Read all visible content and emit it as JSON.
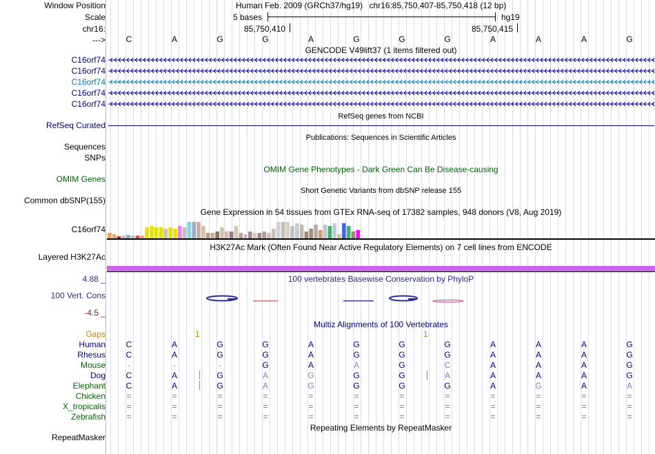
{
  "header": {
    "window_position_label": "Window Position",
    "assembly_text": "Human Feb. 2009 (GRCh37/hg19)",
    "position_text": "chr16:85,750,407-85,750,418 (12 bp)",
    "scale_label": "Scale",
    "scale_text": "5 bases",
    "scale_db": "hg19",
    "chrom_label": "chr16:",
    "coord_left": "85,750,410",
    "coord_right": "85,750,415",
    "strand_label": "--->"
  },
  "ref_bases": [
    "C",
    "A",
    "G",
    "G",
    "A",
    "G",
    "G",
    "G",
    "A",
    "A",
    "A",
    "G"
  ],
  "gencode": {
    "title": "GENCODE V49lift37 (1 items filtered out)",
    "genes": [
      {
        "label": "C16orf74",
        "color": "#000080"
      },
      {
        "label": "C16orf74",
        "color": "#000080"
      },
      {
        "label": "C16orf74",
        "color": "#0a7aa8"
      },
      {
        "label": "C16orf74",
        "color": "#000080"
      },
      {
        "label": "C16orf74",
        "color": "#000080"
      }
    ]
  },
  "refseq": {
    "title": "RefSeq genes from NCBI",
    "label": "RefSeq Curated"
  },
  "publications": {
    "title": "Publications: Sequences in Scientific Articles",
    "label": "Sequences"
  },
  "snps_label": "SNPs",
  "omim": {
    "title": "OMIM Gene Phenotypes - Dark Green Can Be Disease-causing",
    "label": "OMIM Genes",
    "color": "#006400"
  },
  "dbsnp": {
    "title": "Short Genetic Variants from dbSNP release 155",
    "label": "Common dbSNP(155)"
  },
  "gtex": {
    "title": "Gene Expression in 54 tissues from GTEx RNA-seq of 17382 samples, 948 donors (V8, Aug 2019)",
    "label": "C16orf74"
  },
  "h3k27ac": {
    "title": "H3K27Ac Mark (Often Found Near Active Regulatory Elements) on 7 cell lines from ENCODE",
    "label": "Layered H3K27Ac",
    "color": "#cc66ee"
  },
  "phylop": {
    "title": "100 vertebrates Basewise Conservation by PhyloP",
    "label": "100 Vert. Cons",
    "max_label": "4.88 _",
    "min_label": "-4.5 _",
    "color": "#2a2a8a"
  },
  "multiz": {
    "title": "Multiz Alignments of 100 Vertebrates",
    "gaps_label": "Gaps",
    "gap_marker": "1",
    "species": [
      {
        "name": "Human",
        "bases": [
          "C",
          "A",
          "G",
          "G",
          "A",
          "G",
          "G",
          "G",
          "A",
          "A",
          "A",
          "G"
        ]
      },
      {
        "name": "Rhesus",
        "bases": [
          "C",
          "A",
          "G",
          "G",
          "A",
          "G",
          "G",
          "G",
          "A",
          "A",
          "A",
          "G"
        ]
      },
      {
        "name": "Mouse",
        "bases": [
          "-",
          "-",
          "-",
          "G",
          "A",
          "A",
          "G",
          "C",
          "A",
          "A",
          "A",
          "G"
        ]
      },
      {
        "name": "Dog",
        "bases": [
          "C",
          "A",
          "G",
          "A",
          "G",
          "G",
          "G",
          "A",
          "A",
          "A",
          "A",
          "G"
        ]
      },
      {
        "name": "Elephant",
        "bases": [
          "C",
          "A",
          "G",
          "A",
          "G",
          "G",
          "G",
          "G",
          "A",
          "G",
          "A",
          "A"
        ]
      },
      {
        "name": "Chicken",
        "bases": [
          "=",
          "=",
          "=",
          "=",
          "=",
          "=",
          "=",
          "=",
          "=",
          "=",
          "=",
          "="
        ]
      },
      {
        "name": "X_tropicalis",
        "bases": [
          "=",
          "=",
          "=",
          "=",
          "=",
          "=",
          "=",
          "=",
          "=",
          "=",
          "=",
          "="
        ]
      },
      {
        "name": "Zebrafish",
        "bases": [
          "=",
          "=",
          "=",
          "=",
          "=",
          "=",
          "=",
          "=",
          "=",
          "=",
          "=",
          "="
        ]
      }
    ]
  },
  "repeatmasker": {
    "title": "Repeating Elements by RepeatMasker",
    "label": "RepeatMasker"
  },
  "colors": {
    "label_navy": "#000080",
    "label_green": "#006400",
    "gaps_orange": "#d08000",
    "gridline": "#d8dcf0"
  }
}
